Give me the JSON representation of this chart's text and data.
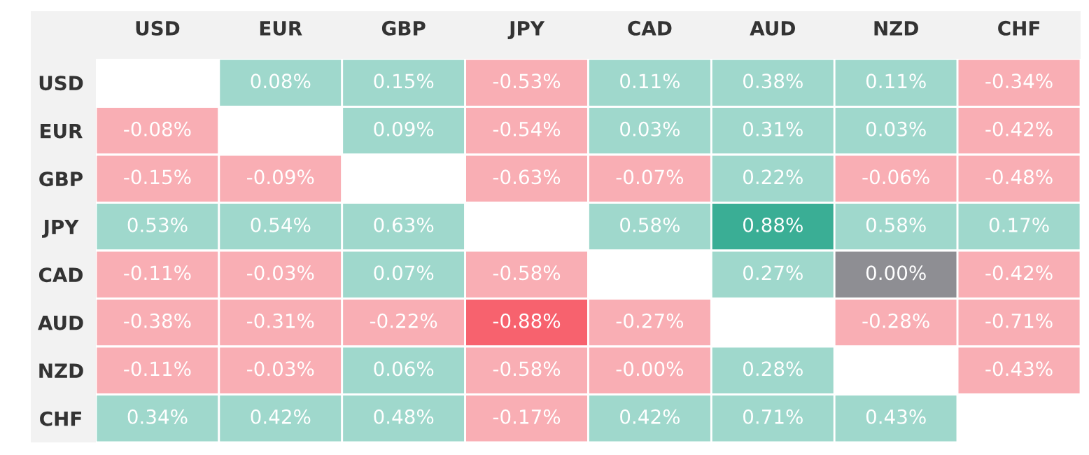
{
  "chart_data": {
    "type": "heatmap",
    "categories": [
      "USD",
      "EUR",
      "GBP",
      "JPY",
      "CAD",
      "AUD",
      "NZD",
      "CHF"
    ],
    "y_categories": [
      "USD",
      "EUR",
      "GBP",
      "JPY",
      "CAD",
      "AUD",
      "NZD",
      "CHF"
    ],
    "cells": [
      [
        null,
        0.08,
        0.15,
        -0.53,
        0.11,
        0.38,
        0.11,
        -0.34
      ],
      [
        -0.08,
        null,
        0.09,
        -0.54,
        0.03,
        0.31,
        0.03,
        -0.42
      ],
      [
        -0.15,
        -0.09,
        null,
        -0.63,
        -0.07,
        0.22,
        -0.06,
        -0.48
      ],
      [
        0.53,
        0.54,
        0.63,
        null,
        0.58,
        0.88,
        0.58,
        0.17
      ],
      [
        -0.11,
        -0.03,
        0.07,
        -0.58,
        null,
        0.27,
        0.0,
        -0.42
      ],
      [
        -0.38,
        -0.31,
        -0.22,
        -0.88,
        -0.27,
        null,
        -0.28,
        -0.71
      ],
      [
        -0.11,
        -0.03,
        0.06,
        -0.58,
        -0.0,
        0.28,
        null,
        -0.43
      ],
      [
        0.34,
        0.42,
        0.48,
        -0.17,
        0.42,
        0.71,
        0.43,
        null
      ]
    ],
    "cell_labels": [
      [
        null,
        "0.08%",
        "0.15%",
        "-0.53%",
        "0.11%",
        "0.38%",
        "0.11%",
        "-0.34%"
      ],
      [
        "-0.08%",
        null,
        "0.09%",
        "-0.54%",
        "0.03%",
        "0.31%",
        "0.03%",
        "-0.42%"
      ],
      [
        "-0.15%",
        "-0.09%",
        null,
        "-0.63%",
        "-0.07%",
        "0.22%",
        "-0.06%",
        "-0.48%"
      ],
      [
        "0.53%",
        "0.54%",
        "0.63%",
        null,
        "0.58%",
        "0.88%",
        "0.58%",
        "0.17%"
      ],
      [
        "-0.11%",
        "-0.03%",
        "0.07%",
        "-0.58%",
        null,
        "0.27%",
        "0.00%",
        "-0.42%"
      ],
      [
        "-0.38%",
        "-0.31%",
        "-0.22%",
        "-0.88%",
        "-0.27%",
        null,
        "-0.28%",
        "-0.71%"
      ],
      [
        "-0.11%",
        "-0.03%",
        "0.06%",
        "-0.58%",
        "-0.00%",
        "0.28%",
        null,
        "-0.43%"
      ],
      [
        "0.34%",
        "0.42%",
        "0.48%",
        "-0.17%",
        "0.42%",
        "0.71%",
        "0.43%",
        null
      ]
    ],
    "colors": [
      "#f7626e",
      "#f9aeb4",
      "#8e8e93",
      "#9fd8cc",
      "#3aae95"
    ]
  }
}
